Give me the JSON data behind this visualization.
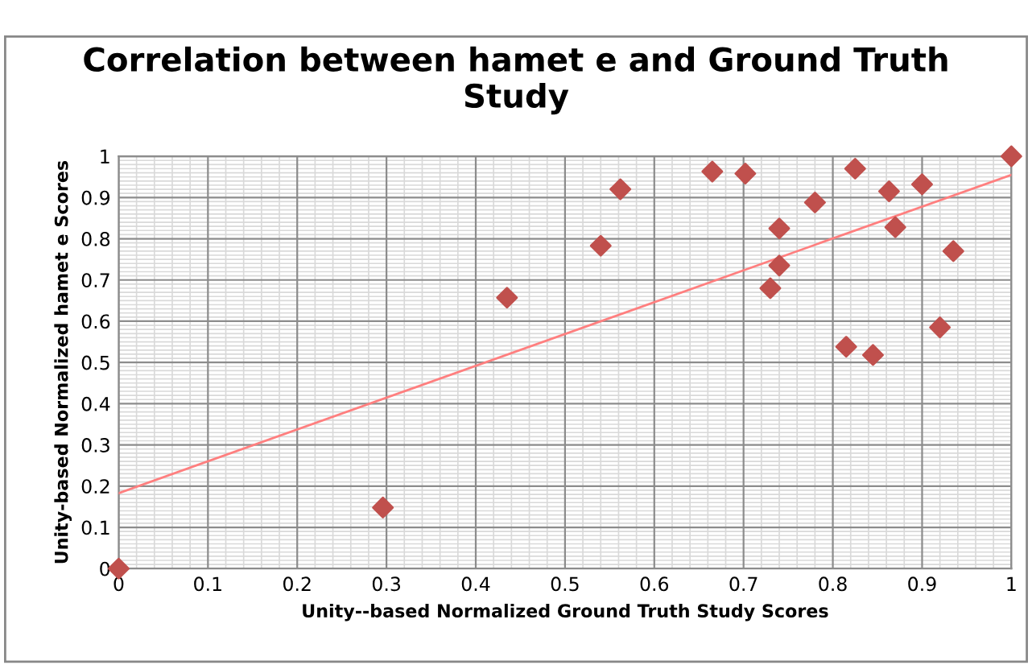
{
  "chart_data": {
    "type": "scatter",
    "title": "Correlation between hamet e and Ground Truth\nStudy",
    "xlabel": "Unity--based Normalized Ground Truth Study Scores",
    "ylabel": "Unity-based Normalized hamet e Scores",
    "series": [
      {
        "color": "#c0504d",
        "marker": "diamond",
        "x": [
          0,
          0.296,
          0.435,
          0.54,
          0.562,
          0.665,
          0.702,
          0.73,
          0.74,
          0.74,
          0.78,
          0.815,
          0.825,
          0.845,
          0.863,
          0.87,
          0.9,
          0.92,
          0.935,
          1.0
        ],
        "values": [
          0,
          0.148,
          0.657,
          0.783,
          0.92,
          0.963,
          0.958,
          0.68,
          0.825,
          0.735,
          0.888,
          0.538,
          0.97,
          0.518,
          0.915,
          0.828,
          0.932,
          0.585,
          0.77,
          1.0
        ]
      },
      {
        "type": "line",
        "color": "#ff7f7f",
        "marker": "none",
        "x": [
          0,
          1
        ],
        "values": [
          0.183,
          0.955
        ]
      }
    ],
    "xlim": [
      0,
      1
    ],
    "ylim": [
      0,
      1
    ],
    "xticks": [
      0,
      0.1,
      0.2,
      0.3,
      0.4,
      0.5,
      0.6,
      0.7,
      0.8,
      0.9,
      1
    ],
    "yticks": [
      0,
      0.1,
      0.2,
      0.3,
      0.4,
      0.5,
      0.6,
      0.7,
      0.8,
      0.9,
      1
    ],
    "grid": true
  }
}
